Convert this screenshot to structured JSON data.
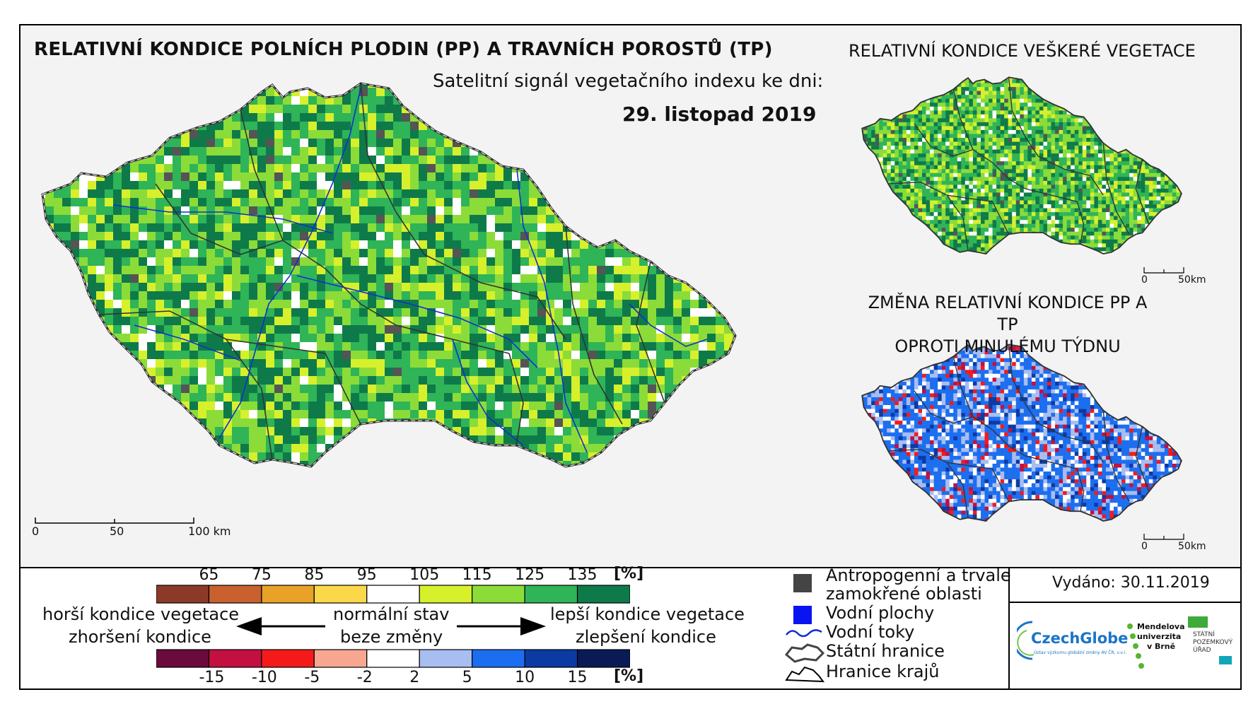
{
  "titles": {
    "main": "RELATIVNÍ KONDICE POLNÍCH PLODIN (PP) A TRAVNÍCH POROSTŮ (TP)",
    "subtitle": "Satelitní signál vegetačního indexu ke dni:",
    "date": "29. listopad 2019",
    "vegetation": "RELATIVNÍ KONDICE VEŠKERÉ VEGETACE",
    "change_line1": "ZMĚNA RELATIVNÍ KONDICE PP A TP",
    "change_line2": "OPROTI MINULÉMU TÝDNU"
  },
  "scalebars": {
    "main": [
      "0",
      "50",
      "100 km"
    ],
    "small_top": [
      "0",
      "50km"
    ],
    "small_bottom": [
      "0",
      "50km"
    ]
  },
  "legend_condition": {
    "ticks": [
      "65",
      "75",
      "85",
      "95",
      "105",
      "115",
      "125",
      "135"
    ],
    "unit": "[%]",
    "colors": [
      "#8b3a2a",
      "#c8612e",
      "#e8a227",
      "#fbd84a",
      "#ffffff",
      "#d6f02c",
      "#8bdc38",
      "#2fb457",
      "#0e7a4a"
    ]
  },
  "legend_change": {
    "ticks": [
      "-15",
      "-10",
      "-5",
      "-2",
      "2",
      "5",
      "10",
      "15"
    ],
    "unit": "[%]",
    "colors": [
      "#6b0a3c",
      "#c21040",
      "#f51a1a",
      "#f7a690",
      "#ffffff",
      "#a8bdf0",
      "#1c6ef0",
      "#0c3aa3",
      "#0a1a55"
    ]
  },
  "legend_text": {
    "worse_condition": "horší kondice vegetace",
    "worse_change": "zhoršení kondice",
    "normal_state": "normální stav",
    "no_change": "beze změny",
    "better_condition": "lepší kondice vegetace",
    "better_change": "zlepšení kondice"
  },
  "symbols": {
    "anthropogenic_line1": "Antropogenní a trvale",
    "anthropogenic_line2": "zamokřené oblasti",
    "water_bodies": "Vodní plochy",
    "watercourses": "Vodní toky",
    "state_border": "Státní hranice",
    "region_border": "Hranice krajů"
  },
  "issued": "Vydáno: 30.11.2019",
  "logos": {
    "czechglobe": "CzechGlobe",
    "czechglobe_sub": "Ústav výzkumu globální změny AV ČR, v.v.i.",
    "mendel_1": "Mendelova",
    "mendel_2": "univerzita",
    "mendel_3": "v Brně",
    "spu_1": "STÁTNÍ",
    "spu_2": "POZEMKOVÝ",
    "spu_3": "ÚŘAD"
  },
  "palette": {
    "condition_map": [
      "#0e7a4a",
      "#2fb457",
      "#8bdc38",
      "#d6f02c",
      "#ffffff"
    ],
    "condition_weights": [
      24,
      30,
      26,
      14,
      6
    ],
    "vegetation_map": [
      "#0e7a4a",
      "#2fb457",
      "#8bdc38",
      "#d6f02c",
      "#ffffff"
    ],
    "vegetation_weights": [
      22,
      30,
      28,
      14,
      6
    ],
    "change_map": [
      "#1c6ef0",
      "#0c3aa3",
      "#a8bdf0",
      "#ffffff",
      "#f51a1a",
      "#c21040"
    ],
    "change_weights": [
      46,
      8,
      20,
      16,
      6,
      4
    ],
    "river": "#1030d0",
    "anthropogenic": "#555555"
  }
}
